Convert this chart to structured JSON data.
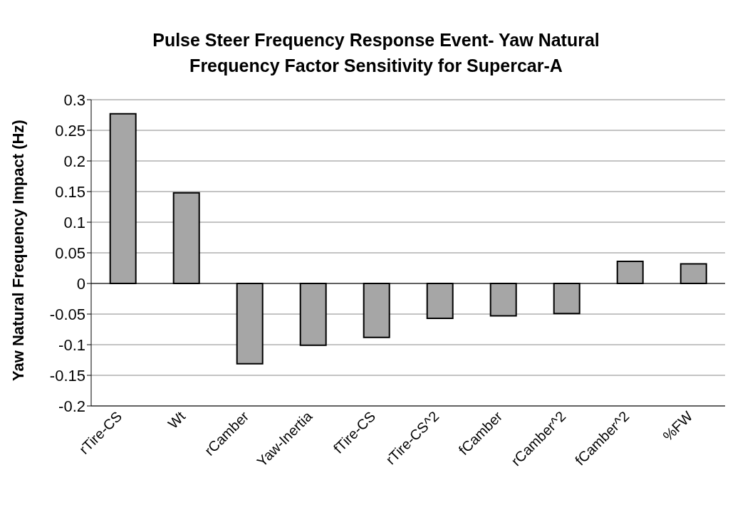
{
  "chart_data": {
    "type": "bar",
    "title": "Pulse Steer Frequency Response Event- Yaw Natural Frequency Factor Sensitivity for Supercar-A",
    "ylabel": "Yaw Natural Frequency Impact (Hz)",
    "categories": [
      "rTire-CS",
      "Wt",
      "rCamber",
      "Yaw-Inertia",
      "fTire-CS",
      "rTire-CS^2",
      "fCamber",
      "rCamber^2",
      "fCamber^2",
      "%FW"
    ],
    "values": [
      0.277,
      0.148,
      -0.131,
      -0.101,
      -0.088,
      -0.057,
      -0.053,
      -0.049,
      0.036,
      0.032
    ],
    "color": "#a6a6a6",
    "ylim": [
      -0.2,
      0.3
    ],
    "yticks": [
      -0.2,
      -0.15,
      -0.1,
      -0.05,
      0,
      0.05,
      0.1,
      0.15,
      0.2,
      0.25,
      0.3
    ],
    "grid": "y"
  }
}
